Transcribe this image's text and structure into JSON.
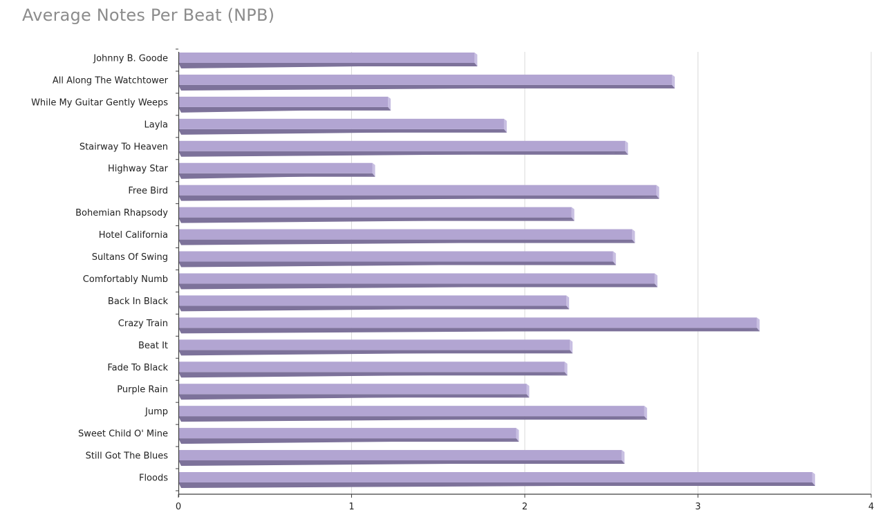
{
  "chart_data": {
    "type": "bar",
    "orientation": "horizontal",
    "title": "Average Notes Per Beat (NPB)",
    "categories": [
      "Johnny B. Goode",
      "All Along The Watchtower",
      "While My Guitar Gently Weeps",
      "Layla",
      "Stairway To Heaven",
      "Highway Star",
      "Free Bird",
      "Bohemian Rhapsody",
      "Hotel California",
      "Sultans Of Swing",
      "Comfortably Numb",
      "Back In Black",
      "Crazy Train",
      "Beat It",
      "Fade To Black",
      "Purple Rain",
      "Jump",
      "Sweet Child O' Mine",
      "Still Got The Blues",
      "Floods"
    ],
    "values": [
      1.71,
      2.85,
      1.21,
      1.88,
      2.58,
      1.12,
      2.76,
      2.27,
      2.62,
      2.51,
      2.75,
      2.24,
      3.34,
      2.26,
      2.23,
      2.01,
      2.69,
      1.95,
      2.56,
      3.66
    ],
    "xlim": [
      0,
      4
    ],
    "x_ticks": [
      0,
      1,
      2,
      3,
      4
    ],
    "x_tick_labels": [
      "0",
      "1",
      "2",
      "3",
      "4"
    ],
    "grid": "vertical",
    "legend": "none",
    "colors": {
      "bar_face": "#b2a5d2",
      "bar_bottom": "#7d729a",
      "bar_right": "#c8bfe2",
      "gridline": "#d9d9d9",
      "axis": "#3f3f3f"
    }
  }
}
